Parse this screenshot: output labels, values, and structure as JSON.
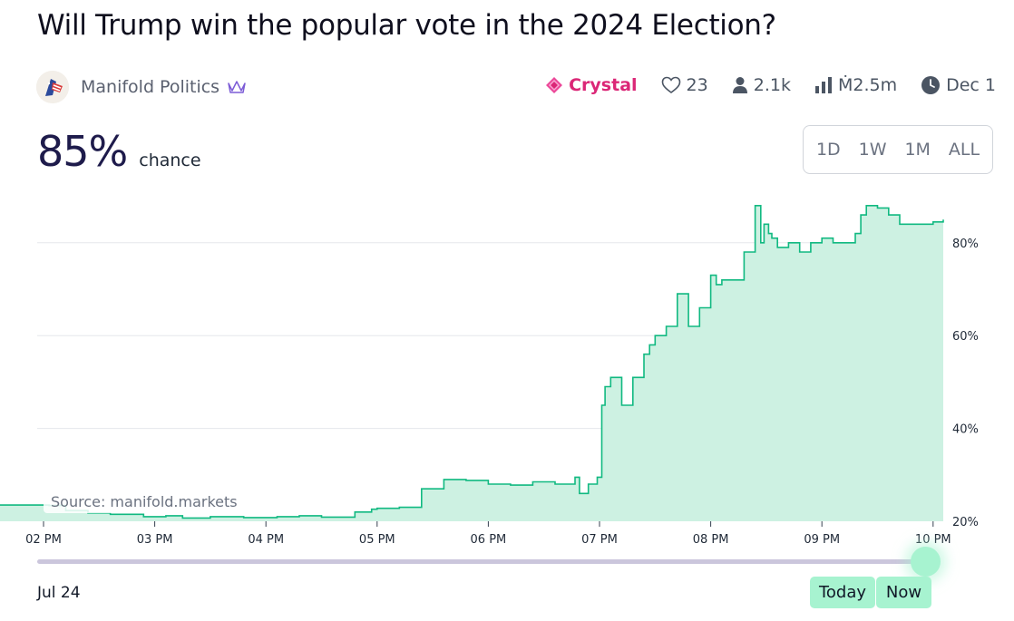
{
  "title": "Will Trump win the popular vote in the 2024 Election?",
  "creator": {
    "name": "Manifold Politics",
    "icon": "crown-badge-icon"
  },
  "stats": {
    "tier": "Crystal",
    "likes": "23",
    "traders": "2.1k",
    "volume": "Ṁ2.5m",
    "close_date": "Dec 1"
  },
  "probability": {
    "value": "85%",
    "label": "chance"
  },
  "time_ranges": [
    "1D",
    "1W",
    "1M",
    "ALL"
  ],
  "colors": {
    "line": "#11b981",
    "fill": "#cdf1e2",
    "crystal": "#db2777",
    "grid": "#e5e7eb"
  },
  "chart_data": {
    "type": "area",
    "source_label": "Source: manifold.markets",
    "x_tick_labels": [
      "02 PM",
      "03 PM",
      "04 PM",
      "05 PM",
      "06 PM",
      "07 PM",
      "08 PM",
      "09 PM",
      "10 PM"
    ],
    "y_tick_labels": [
      "20%",
      "40%",
      "60%",
      "80%"
    ],
    "y_ticks": [
      20,
      40,
      60,
      80
    ],
    "ylim": [
      20,
      90
    ],
    "xlim": [
      13.93,
      22.13
    ],
    "grid": true,
    "series": [
      {
        "x": [
          13.93,
          14.05,
          14.2,
          14.4,
          14.6,
          14.9,
          15.1,
          15.25,
          15.5,
          15.8,
          16.1,
          16.3,
          16.5,
          16.8,
          16.95,
          17.0,
          17.2,
          17.4,
          17.5,
          17.6,
          17.8,
          18.0,
          18.2,
          18.4,
          18.6,
          18.7,
          18.78,
          18.82,
          18.9,
          18.98,
          19.02,
          19.05,
          19.1,
          19.2,
          19.3,
          19.4,
          19.45,
          19.5,
          19.6,
          19.7,
          19.8,
          19.9,
          20.0,
          20.05,
          20.1,
          20.2,
          20.3,
          20.4,
          20.45,
          20.48,
          20.52,
          20.55,
          20.6,
          20.7,
          20.8,
          20.9,
          21.0,
          21.1,
          21.2,
          21.3,
          21.35,
          21.4,
          21.5,
          21.6,
          21.7,
          21.8,
          22.0,
          22.13
        ],
        "y": [
          23.5,
          23.4,
          22.3,
          21.8,
          21.5,
          21.0,
          21.2,
          20.7,
          21.0,
          20.8,
          21.0,
          21.2,
          20.9,
          22.0,
          22.6,
          22.8,
          23.0,
          27.0,
          27.0,
          29.0,
          28.8,
          28.0,
          27.8,
          28.5,
          28.0,
          28.0,
          29.5,
          26.0,
          28.0,
          29.5,
          45.0,
          49.0,
          51.0,
          45.0,
          51.0,
          56.0,
          58.0,
          60.0,
          62.0,
          69.0,
          62.0,
          66.0,
          73.0,
          71.0,
          72.0,
          72.0,
          78.0,
          88.0,
          80.0,
          84.0,
          82.0,
          81.0,
          79.0,
          80.0,
          78.0,
          80.0,
          81.0,
          80.0,
          80.0,
          82.0,
          86.0,
          88.0,
          87.5,
          86.0,
          84.0,
          84.0,
          84.5,
          85.0
        ]
      }
    ]
  }
}
